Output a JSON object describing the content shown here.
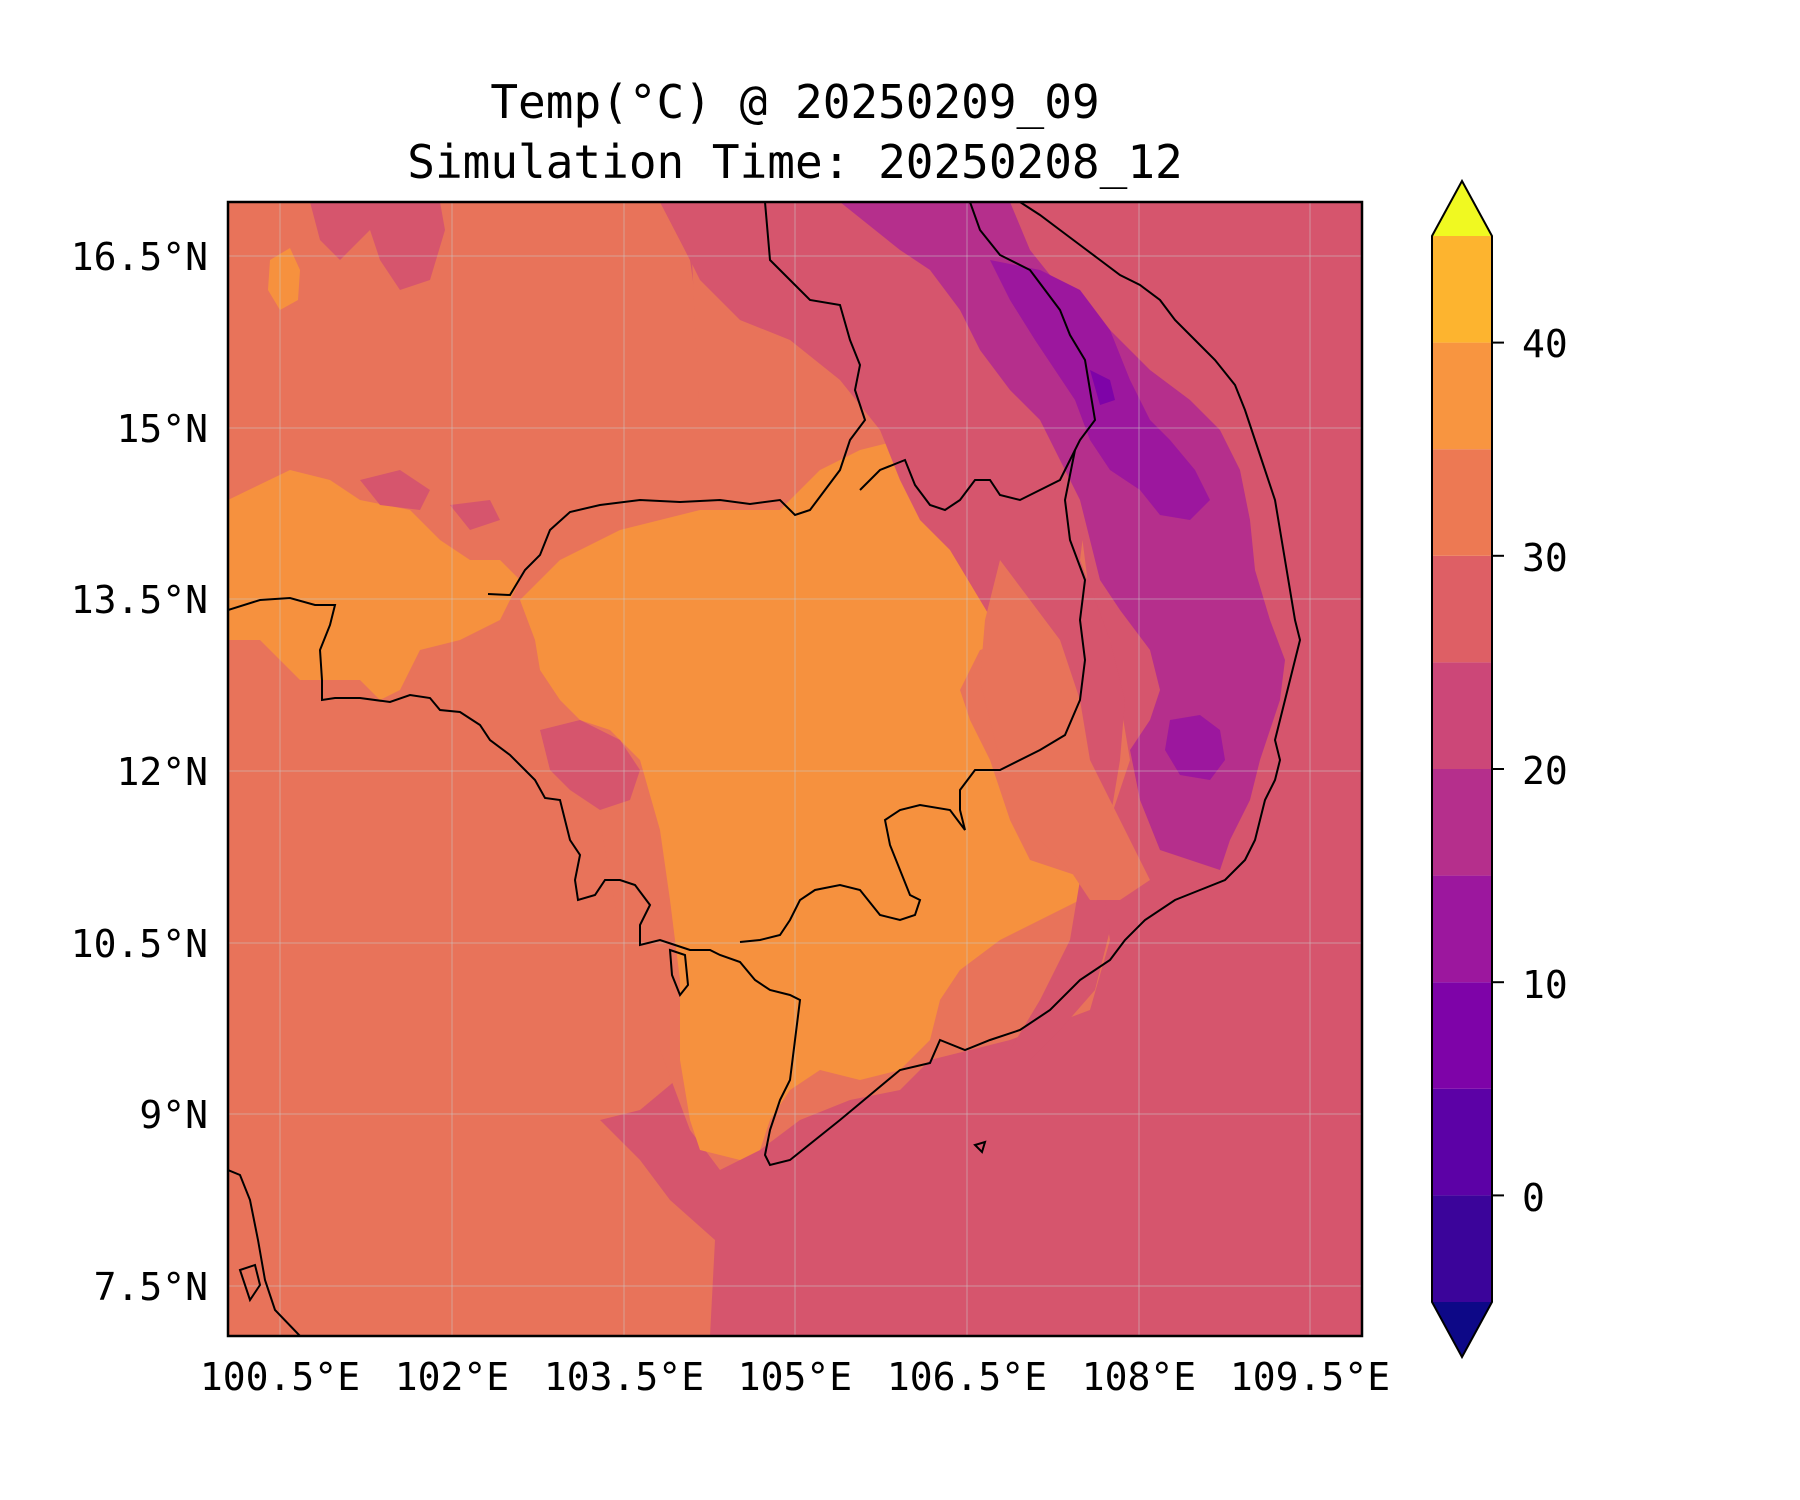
{
  "map": {
    "title_line1": "Temp(°C) @ 20250209_09",
    "title_line2": "Simulation Time: 20250208_12",
    "longitude_ticks": [
      "100.5°E",
      "102°E",
      "103.5°E",
      "105°E",
      "106.5°E",
      "108°E",
      "109.5°E"
    ],
    "latitude_ticks": [
      "16.5°N",
      "15°N",
      "13.5°N",
      "12°N",
      "10.5°N",
      "9°N",
      "7.5°N"
    ],
    "extent": {
      "lon_min": 100.05,
      "lon_max": 109.95,
      "lat_min": 7.05,
      "lat_max": 16.95
    },
    "colorbar": {
      "tick_labels": [
        "0",
        "10",
        "20",
        "30",
        "40"
      ],
      "levels": [
        -5,
        0,
        5,
        10,
        15,
        20,
        25,
        30,
        35,
        40,
        45
      ],
      "extend": "both",
      "colormap": "plasma",
      "colors": [
        "#1f0c8b",
        "#3b049a",
        "#5c01a6",
        "#7e03a8",
        "#9c179e",
        "#b52f8c",
        "#cc4778",
        "#de5f65",
        "#ed7953",
        "#f89540",
        "#fdb42f",
        "#f0f921"
      ],
      "under_color": "#0d0887",
      "over_color": "#f0f921"
    }
  }
}
